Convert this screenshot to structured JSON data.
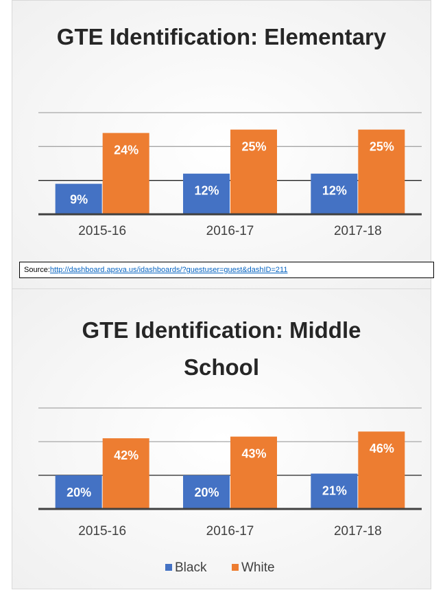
{
  "chart_data": [
    {
      "type": "bar",
      "title": "GTE Identification: Elementary",
      "categories": [
        "2015-16",
        "2016-17",
        "2017-18"
      ],
      "series": [
        {
          "name": "Black",
          "color": "#4472c4",
          "values": [
            9,
            12,
            12
          ],
          "value_labels": [
            "9%",
            "12%",
            "12%"
          ]
        },
        {
          "name": "White",
          "color": "#ed7d31",
          "values": [
            24,
            25,
            25
          ],
          "value_labels": [
            "24%",
            "25%",
            "25%"
          ]
        }
      ],
      "ylim": [
        0,
        30
      ],
      "yticks": [
        0,
        10,
        20,
        30
      ],
      "grid": true,
      "legend": "bottom"
    },
    {
      "type": "bar",
      "title": "GTE Identification: Middle School",
      "categories": [
        "2015-16",
        "2016-17",
        "2017-18"
      ],
      "series": [
        {
          "name": "Black",
          "color": "#4472c4",
          "values": [
            20,
            20,
            21
          ],
          "value_labels": [
            "20%",
            "20%",
            "21%"
          ]
        },
        {
          "name": "White",
          "color": "#ed7d31",
          "values": [
            42,
            43,
            46
          ],
          "value_labels": [
            "42%",
            "43%",
            "46%"
          ]
        }
      ],
      "ylim": [
        0,
        60
      ],
      "yticks": [
        0,
        20,
        40,
        60
      ],
      "grid": true,
      "legend": "bottom"
    }
  ],
  "source": {
    "label": "Source:",
    "url": "http://dashboard.apsva.us/idashboards/?guestuser=guest&dashID=211"
  }
}
